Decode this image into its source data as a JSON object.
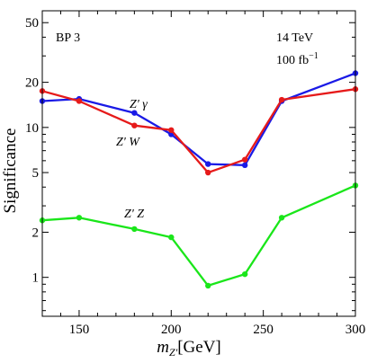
{
  "chart_data": {
    "type": "line",
    "annotation_panel": "BP 3",
    "annotation_energy": "14 TeV",
    "annotation_lumi_value": "100 fb",
    "annotation_lumi_exp": "−1",
    "ylabel": "Significance",
    "xlabel_main": "m",
    "xlabel_sub": "Z'",
    "xlabel_unit": "[GeV]",
    "yscale": "log",
    "xlim": [
      130,
      300
    ],
    "ylim": [
      0.55,
      60
    ],
    "x_ticks": [
      150,
      200,
      250,
      300
    ],
    "y_ticks": [
      1,
      2,
      5,
      10,
      20,
      50
    ],
    "x_minor_ticks": [
      140,
      160,
      170,
      180,
      190,
      210,
      220,
      230,
      240,
      260,
      270,
      280,
      290
    ],
    "y_minor_ticks": [
      0.6,
      0.7,
      0.8,
      0.9,
      3,
      4,
      6,
      7,
      8,
      9,
      30,
      40
    ],
    "x": [
      130,
      150,
      180,
      200,
      220,
      240,
      260,
      300
    ],
    "series": [
      {
        "name": "Z' γ",
        "color": "#1a1ae6",
        "values": [
          15.0,
          15.5,
          12.5,
          9.0,
          5.7,
          5.6,
          15.0,
          23.0
        ]
      },
      {
        "name": "Z' W",
        "color": "#e61a1a",
        "values": [
          17.5,
          15.0,
          10.3,
          9.6,
          5.0,
          6.1,
          15.3,
          18.0
        ]
      },
      {
        "name": "Z' Z",
        "color": "#1ae61a",
        "values": [
          2.4,
          2.5,
          2.1,
          1.85,
          0.88,
          1.05,
          2.5,
          4.1
        ]
      }
    ]
  }
}
